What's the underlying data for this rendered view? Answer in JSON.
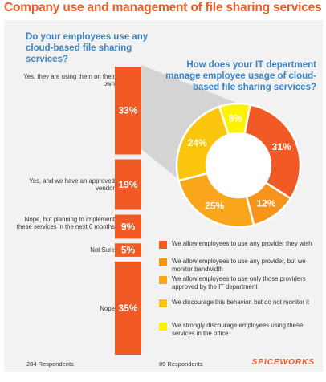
{
  "title": "Company use and management of file sharing services",
  "footer": {
    "left": "284 Respondents",
    "middle": "89 Respondents",
    "logo": "SPICEWORKS"
  },
  "colors": {
    "panel": "#f2f2f2",
    "question": "#3e83c5",
    "title": "#f15a24",
    "bar": "#f15a24",
    "connector": "#d4d4d4"
  },
  "chart_data": [
    {
      "type": "bar",
      "orientation": "horizontal",
      "title": "Do your employees use any cloud-based file sharing services?",
      "categories": [
        "Yes, they are using them on their own",
        "Yes, and we have an approved vendor",
        "Nope, but planning to implement these services in the next 6 months",
        "Not Sure",
        "Nope"
      ],
      "values": [
        33,
        19,
        9,
        5,
        35
      ],
      "value_labels": [
        "33%",
        "19%",
        "9%",
        "5%",
        "35%"
      ],
      "color": "#f15a24"
    },
    {
      "type": "pie",
      "donut": true,
      "title": "How does your IT department manage employee usage of cloud-based file sharing services?",
      "labels": [
        "We allow employees to use any provider they wish",
        "We allow employees to use any provider, but we monitor bandwidth",
        "We allow employees to use only those providers approved by the IT department",
        "We discourage this behavior, but do not monitor it",
        "We strongly discourage employees using these services in the office"
      ],
      "values": [
        31,
        12,
        25,
        24,
        8
      ],
      "value_labels": [
        "31%",
        "12%",
        "25%",
        "24%",
        "8%"
      ],
      "colors": [
        "#f15a24",
        "#f7941d",
        "#faa61a",
        "#fbc50d",
        "#fff200"
      ]
    }
  ]
}
